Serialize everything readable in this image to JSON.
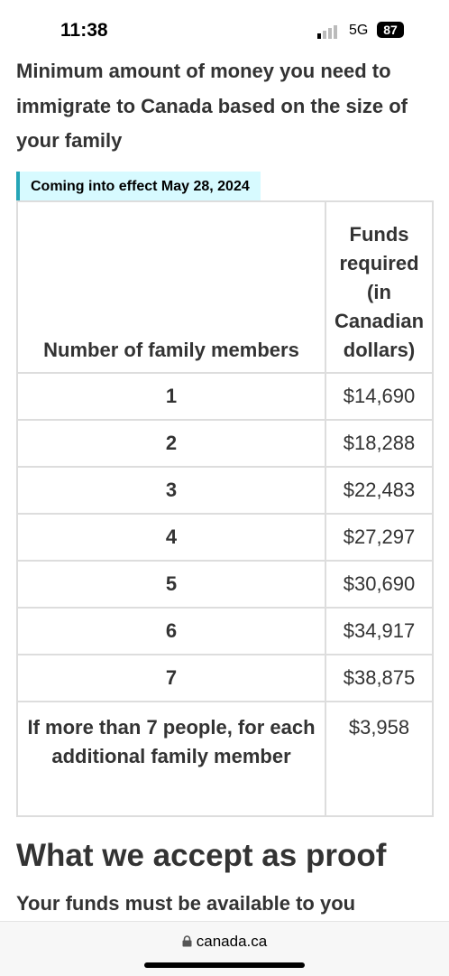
{
  "status_bar": {
    "time": "11:38",
    "network": "5G",
    "battery": "87"
  },
  "intro": "Minimum amount of money you need to immigrate to Canada based on the size of your family",
  "label": "Coming into effect May 28, 2024",
  "table": {
    "header": [
      "Number of family members",
      "Funds required (in Canadian dollars)"
    ],
    "rows": [
      [
        "1",
        "$14,690"
      ],
      [
        "2",
        "$18,288"
      ],
      [
        "3",
        "$22,483"
      ],
      [
        "4",
        "$27,297"
      ],
      [
        "5",
        "$30,690"
      ],
      [
        "6",
        "$34,917"
      ],
      [
        "7",
        "$38,875"
      ],
      [
        "If more than 7 people, for each additional family member",
        "$3,958"
      ]
    ]
  },
  "section_heading": "What we accept as proof",
  "section_text": "Your funds must be available to you",
  "url_bar": "canada.ca"
}
